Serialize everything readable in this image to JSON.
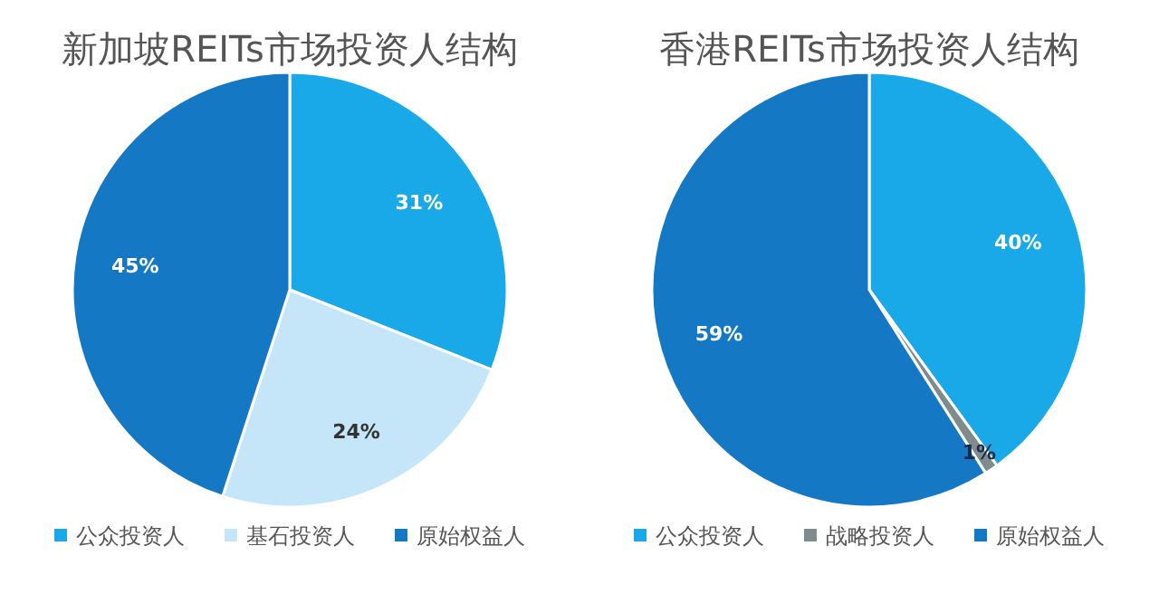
{
  "chart_data": [
    {
      "type": "pie",
      "title": "新加坡REITs市场投资人结构",
      "categories": [
        "公众投资人",
        "基石投资人",
        "原始权益人"
      ],
      "values": [
        31,
        24,
        45
      ],
      "colors": [
        "#1aa9e8",
        "#c5e6f8",
        "#1578c5"
      ],
      "value_labels": [
        "31%",
        "24%",
        "45%"
      ],
      "legend": "bottom"
    },
    {
      "type": "pie",
      "title": "香港REITs市场投资人结构",
      "categories": [
        "公众投资人",
        "战略投资人",
        "原始权益人"
      ],
      "values": [
        40,
        1,
        59
      ],
      "colors": [
        "#1aa9e8",
        "#7f8c8d",
        "#1578c5"
      ],
      "value_labels": [
        "40%",
        "1%",
        "59%"
      ],
      "legend": "bottom"
    }
  ]
}
